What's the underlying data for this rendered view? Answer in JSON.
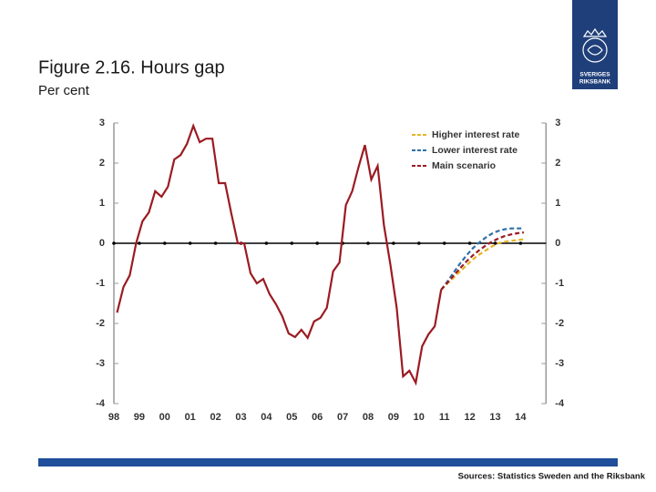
{
  "chart_data": {
    "type": "line",
    "title": "Figure 2.16. Hours gap",
    "subtitle": "Per cent",
    "source": "Sources: Statistics Sweden and the Riksbank",
    "logo": [
      "SVERIGES",
      "RIKSBANK"
    ],
    "x": [
      1998.125,
      1998.375,
      1998.625,
      1998.875,
      1999.125,
      1999.375,
      1999.625,
      1999.875,
      2000.125,
      2000.375,
      2000.625,
      2000.875,
      2001.125,
      2001.375,
      2001.625,
      2001.875,
      2002.125,
      2002.375,
      2002.625,
      2002.875,
      2003.125,
      2003.375,
      2003.625,
      2003.875,
      2004.125,
      2004.375,
      2004.625,
      2004.875,
      2005.125,
      2005.375,
      2005.625,
      2005.875,
      2006.125,
      2006.375,
      2006.625,
      2006.875,
      2007.125,
      2007.375,
      2007.625,
      2007.875,
      2008.125,
      2008.375,
      2008.625,
      2008.875,
      2009.125,
      2009.375,
      2009.625,
      2009.875,
      2010.125,
      2010.375,
      2010.625,
      2010.875,
      2011.125,
      2011.375,
      2011.625,
      2011.875,
      2012.125,
      2012.375,
      2012.625,
      2012.875,
      2013.125,
      2013.375,
      2013.625,
      2013.875,
      2014.125
    ],
    "dashed_after": 2010.875,
    "series": [
      {
        "name": "Higher interest rate",
        "color": "#e6b525",
        "values": [
          null,
          null,
          null,
          null,
          null,
          null,
          null,
          null,
          null,
          null,
          null,
          null,
          null,
          null,
          null,
          null,
          null,
          null,
          null,
          null,
          null,
          null,
          null,
          null,
          null,
          null,
          null,
          null,
          null,
          null,
          null,
          null,
          null,
          null,
          null,
          null,
          null,
          null,
          null,
          null,
          null,
          null,
          null,
          null,
          null,
          null,
          null,
          null,
          null,
          null,
          null,
          -1.16,
          -1.0,
          -0.85,
          -0.7,
          -0.55,
          -0.4,
          -0.28,
          -0.18,
          -0.08,
          0.0,
          0.04,
          0.06,
          0.08,
          0.1
        ]
      },
      {
        "name": "Lower interest rate",
        "color": "#2e6fa8",
        "values": [
          null,
          null,
          null,
          null,
          null,
          null,
          null,
          null,
          null,
          null,
          null,
          null,
          null,
          null,
          null,
          null,
          null,
          null,
          null,
          null,
          null,
          null,
          null,
          null,
          null,
          null,
          null,
          null,
          null,
          null,
          null,
          null,
          null,
          null,
          null,
          null,
          null,
          null,
          null,
          null,
          null,
          null,
          null,
          null,
          null,
          null,
          null,
          null,
          null,
          null,
          null,
          -1.16,
          -0.95,
          -0.72,
          -0.5,
          -0.3,
          -0.12,
          0.02,
          0.14,
          0.24,
          0.31,
          0.35,
          0.37,
          0.37,
          0.37
        ]
      },
      {
        "name": "Main scenario",
        "color": "#9b1b22",
        "values": [
          -1.73,
          -1.09,
          -0.8,
          0,
          0.55,
          0.77,
          1.3,
          1.16,
          1.41,
          2.09,
          2.2,
          2.48,
          2.93,
          2.52,
          2.61,
          2.61,
          1.5,
          1.5,
          0.73,
          0,
          0,
          -0.75,
          -1,
          -0.89,
          -1.27,
          -1.52,
          -1.82,
          -2.25,
          -2.34,
          -2.16,
          -2.36,
          -1.95,
          -1.86,
          -1.61,
          -0.7,
          -0.48,
          0.95,
          1.3,
          1.9,
          2.45,
          1.59,
          1.93,
          0.45,
          -0.52,
          -1.61,
          -3.32,
          -3.18,
          -3.48,
          -2.57,
          -2.27,
          -2.07,
          -1.16,
          -0.98,
          -0.8,
          -0.62,
          -0.45,
          -0.3,
          -0.17,
          -0.06,
          0.04,
          0.12,
          0.18,
          0.22,
          0.25,
          0.27
        ]
      }
    ],
    "xlim": [
      1998,
      2015
    ],
    "xticks": [
      {
        "value": 1998,
        "label": "98"
      },
      {
        "value": 1999,
        "label": "99"
      },
      {
        "value": 2000,
        "label": "00"
      },
      {
        "value": 2001,
        "label": "01"
      },
      {
        "value": 2002,
        "label": "02"
      },
      {
        "value": 2003,
        "label": "03"
      },
      {
        "value": 2004,
        "label": "04"
      },
      {
        "value": 2005,
        "label": "05"
      },
      {
        "value": 2006,
        "label": "06"
      },
      {
        "value": 2007,
        "label": "07"
      },
      {
        "value": 2008,
        "label": "08"
      },
      {
        "value": 2009,
        "label": "09"
      },
      {
        "value": 2010,
        "label": "10"
      },
      {
        "value": 2011,
        "label": "11"
      },
      {
        "value": 2012,
        "label": "12"
      },
      {
        "value": 2013,
        "label": "13"
      },
      {
        "value": 2014,
        "label": "14"
      }
    ],
    "ylim": [
      -4,
      3
    ],
    "yticks": [
      -4,
      -3,
      -2,
      -1,
      0,
      1,
      2,
      3
    ],
    "y2lim": [
      -4,
      3
    ],
    "y2ticks": [
      -4,
      -3,
      -2,
      -1,
      0,
      1,
      2,
      3
    ],
    "legend": "upper right"
  }
}
